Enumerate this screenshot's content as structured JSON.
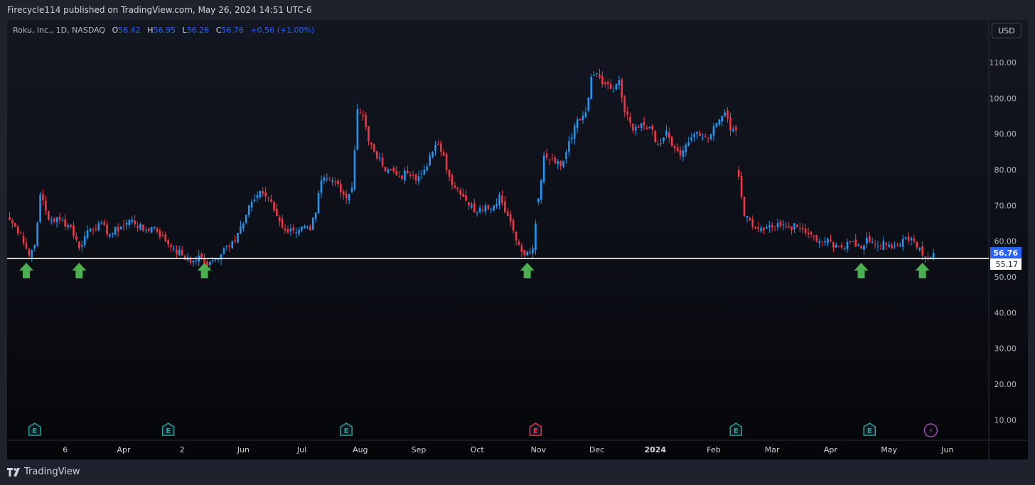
{
  "header": {
    "publish_line": "Firecycle114 published on TradingView.com, May 26, 2024 14:51 UTC-6"
  },
  "legend": {
    "symbol": "Roku, Inc., 1D, NASDAQ",
    "o_label": "O",
    "o_value": "56.42",
    "h_label": "H",
    "h_value": "56.95",
    "l_label": "L",
    "l_value": "56.26",
    "c_label": "C",
    "c_value": "56.76",
    "change": "+0.56 (+1.00%)"
  },
  "currency_button": "USD",
  "footer": {
    "brand": "TradingView"
  },
  "colors": {
    "up": "#2196f3",
    "down": "#f23645",
    "arrow": "#4caf50",
    "earnings_teal": "#26a69a",
    "earnings_red": "#f23645",
    "flash": "#ab47bc"
  },
  "chart_data": {
    "type": "candlestick",
    "symbol": "ROKU",
    "timeframe": "1D",
    "ylim": [
      0,
      120
    ],
    "y_ticks": [
      "10.00",
      "20.00",
      "30.00",
      "40.00",
      "50.00",
      "60.00",
      "70.00",
      "80.00",
      "90.00",
      "100.00",
      "110.00"
    ],
    "x_ticks": [
      "6",
      "Apr",
      "2",
      "Jun",
      "Jul",
      "Aug",
      "Sep",
      "Oct",
      "Nov",
      "Dec",
      "2024",
      "Feb",
      "Mar",
      "Apr",
      "May",
      "Jun"
    ],
    "x_tick_bold": "2024",
    "current_price_label": "56.76",
    "current_price": 56.76,
    "support_line_label": "55.17",
    "support_line": 55.17,
    "arrow_indices": [
      6,
      25,
      70,
      186,
      306,
      328
    ],
    "earnings_markers": [
      {
        "index": 9,
        "label": "E",
        "type": "normal"
      },
      {
        "index": 57,
        "label": "E",
        "type": "normal"
      },
      {
        "index": 121,
        "label": "E",
        "type": "normal"
      },
      {
        "index": 189,
        "label": "E",
        "type": "negative"
      },
      {
        "index": 261,
        "label": "E",
        "type": "normal"
      },
      {
        "index": 309,
        "label": "E",
        "type": "normal"
      },
      {
        "index": 331,
        "label": "⚡",
        "type": "split"
      }
    ],
    "close_anchors": [
      [
        0,
        66
      ],
      [
        4,
        62
      ],
      [
        7,
        56
      ],
      [
        9,
        59
      ],
      [
        11,
        73
      ],
      [
        14,
        66
      ],
      [
        18,
        66
      ],
      [
        22,
        64
      ],
      [
        25,
        58
      ],
      [
        28,
        63
      ],
      [
        32,
        65
      ],
      [
        36,
        62
      ],
      [
        40,
        64
      ],
      [
        44,
        66
      ],
      [
        48,
        63
      ],
      [
        52,
        64
      ],
      [
        56,
        60
      ],
      [
        59,
        58
      ],
      [
        62,
        56
      ],
      [
        65,
        54
      ],
      [
        68,
        56
      ],
      [
        71,
        53
      ],
      [
        74,
        55
      ],
      [
        77,
        58
      ],
      [
        80,
        60
      ],
      [
        84,
        65
      ],
      [
        87,
        71
      ],
      [
        90,
        74
      ],
      [
        93,
        72
      ],
      [
        96,
        67
      ],
      [
        99,
        63
      ],
      [
        102,
        63
      ],
      [
        105,
        64
      ],
      [
        108,
        63
      ],
      [
        110,
        68
      ],
      [
        112,
        77
      ],
      [
        115,
        77
      ],
      [
        118,
        76
      ],
      [
        121,
        72
      ],
      [
        123,
        75
      ],
      [
        125,
        97
      ],
      [
        127,
        95
      ],
      [
        129,
        88
      ],
      [
        131,
        85
      ],
      [
        134,
        81
      ],
      [
        137,
        80
      ],
      [
        140,
        78
      ],
      [
        143,
        79
      ],
      [
        146,
        77
      ],
      [
        149,
        80
      ],
      [
        152,
        85
      ],
      [
        154,
        87
      ],
      [
        156,
        84
      ],
      [
        158,
        78
      ],
      [
        160,
        75
      ],
      [
        162,
        73
      ],
      [
        165,
        70
      ],
      [
        168,
        68
      ],
      [
        171,
        70
      ],
      [
        174,
        70
      ],
      [
        176,
        73
      ],
      [
        178,
        68
      ],
      [
        181,
        63
      ],
      [
        184,
        57
      ],
      [
        186,
        57
      ],
      [
        188,
        58
      ],
      [
        190,
        72
      ],
      [
        192,
        84
      ],
      [
        195,
        83
      ],
      [
        198,
        81
      ],
      [
        201,
        88
      ],
      [
        204,
        94
      ],
      [
        207,
        96
      ],
      [
        209,
        106
      ],
      [
        211,
        107
      ],
      [
        214,
        104
      ],
      [
        217,
        102
      ],
      [
        219,
        105
      ],
      [
        221,
        96
      ],
      [
        224,
        91
      ],
      [
        227,
        93
      ],
      [
        230,
        92
      ],
      [
        233,
        87
      ],
      [
        236,
        91
      ],
      [
        239,
        86
      ],
      [
        241,
        84
      ],
      [
        243,
        87
      ],
      [
        246,
        90
      ],
      [
        249,
        89
      ],
      [
        252,
        90
      ],
      [
        255,
        94
      ],
      [
        257,
        96
      ],
      [
        259,
        91
      ],
      [
        261,
        91
      ],
      [
        262,
        78
      ],
      [
        264,
        67
      ],
      [
        267,
        64
      ],
      [
        271,
        63
      ],
      [
        275,
        64
      ],
      [
        279,
        64
      ],
      [
        283,
        64
      ],
      [
        287,
        62
      ],
      [
        290,
        60
      ],
      [
        293,
        60
      ],
      [
        297,
        59
      ],
      [
        300,
        58
      ],
      [
        303,
        60
      ],
      [
        306,
        58
      ],
      [
        308,
        61
      ],
      [
        311,
        59
      ],
      [
        315,
        59
      ],
      [
        319,
        59
      ],
      [
        322,
        61
      ],
      [
        325,
        60
      ],
      [
        328,
        56
      ],
      [
        330,
        55
      ],
      [
        332,
        56.76
      ]
    ],
    "gaps_after_index": [
      125,
      189,
      209,
      261
    ]
  }
}
